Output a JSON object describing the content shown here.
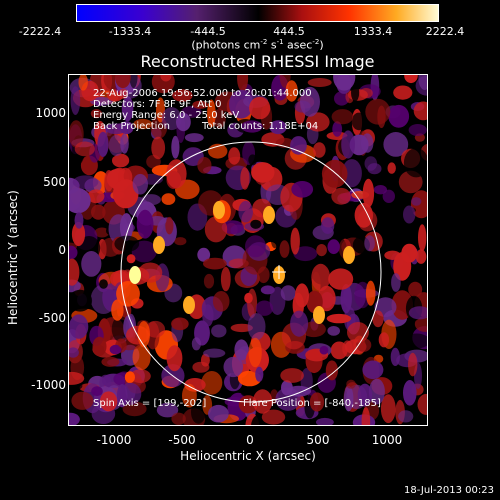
{
  "colorbar": {
    "ticks": [
      "-2222.4",
      "-1333.4",
      "-444.5",
      "444.5",
      "1333.4",
      "2222.4"
    ],
    "units_prefix": "(photons cm",
    "units_sup1": "-2",
    "units_mid1": " s",
    "units_sup2": "-1",
    "units_mid2": " asec",
    "units_sup3": "-2",
    "units_suffix": ")"
  },
  "title": "Reconstructed RHESSI Image",
  "annotations": {
    "time_range": "22-Aug-2006 19:56:52.000 to 20:01:44.000",
    "detectors": "Detectors: 7F 8F 9F, Att 0",
    "energy": "Energy Range: 6.0 - 25.0 keV",
    "method": "Back Projection",
    "counts": "Total counts: 1.18E+04",
    "spin_axis": "Spin Axis = [199,-202]",
    "flare_position": "Flare Position = [-840,-185]"
  },
  "axes": {
    "xlabel": "Heliocentric X (arcsec)",
    "ylabel": "Heliocentric Y (arcsec)",
    "xticks": [
      "-1000",
      "-500",
      "0",
      "500",
      "1000"
    ],
    "yticks": [
      "1000",
      "500",
      "0",
      "-500",
      "-1000"
    ]
  },
  "footer": "18-Jul-2013 00:23",
  "colors": {
    "colormap": [
      "#0000ff",
      "#3300cc",
      "#55006e",
      "#5c1a7e",
      "#6b2c8e",
      "#000000",
      "#8b1010",
      "#cc1f1f",
      "#ff4400",
      "#ffaa22",
      "#ffff99"
    ]
  }
}
